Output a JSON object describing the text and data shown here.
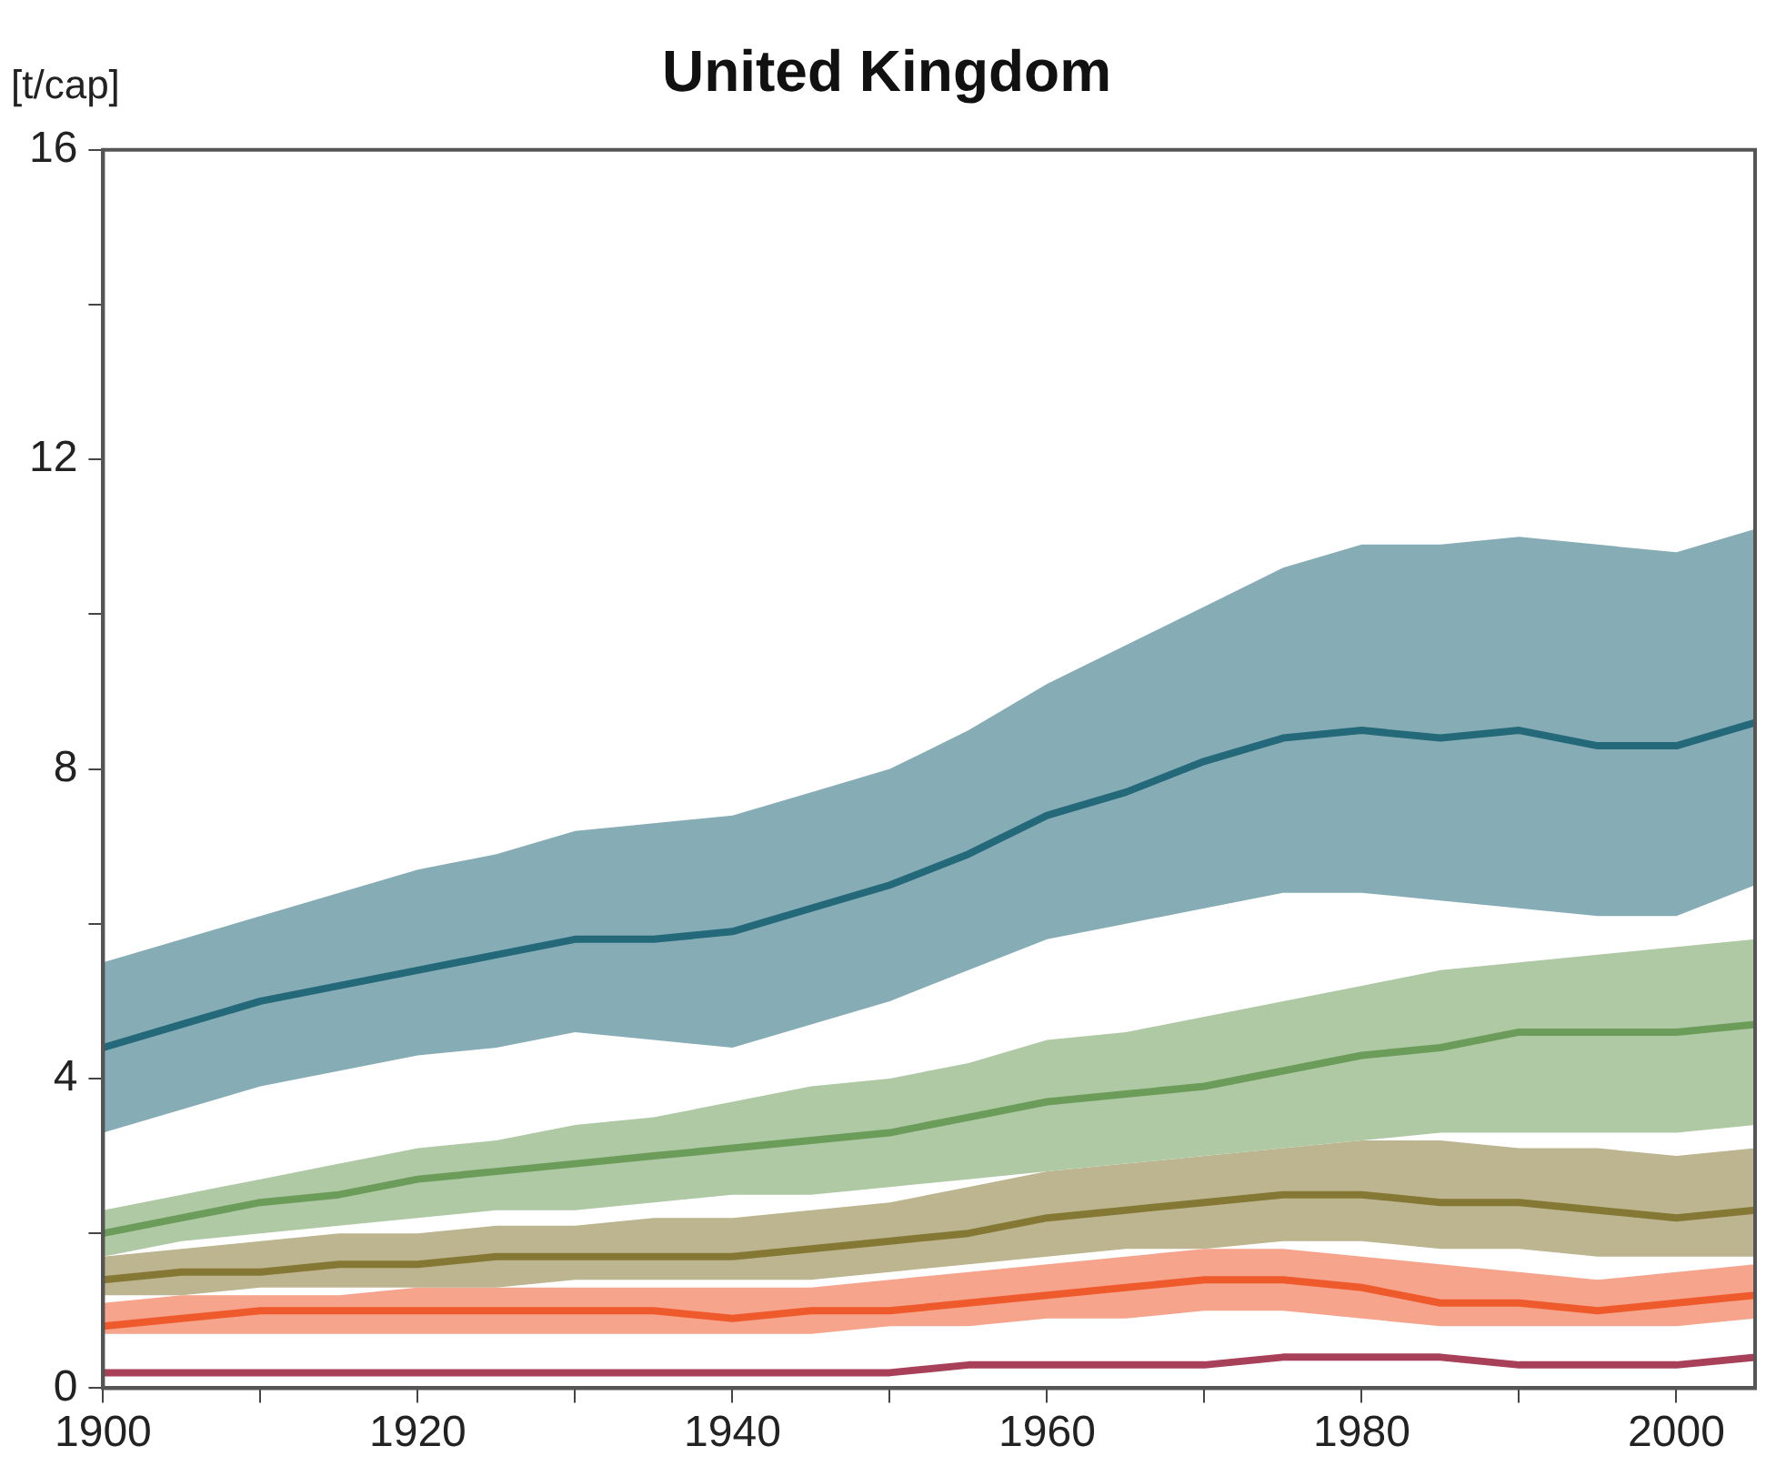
{
  "chart_data": {
    "type": "line",
    "title": "United Kingdom",
    "ylabel": "[t/cap]",
    "x": [
      1900,
      1905,
      1910,
      1915,
      1920,
      1925,
      1930,
      1935,
      1940,
      1945,
      1950,
      1955,
      1960,
      1965,
      1970,
      1975,
      1980,
      1985,
      1990,
      1995,
      2000,
      2005
    ],
    "series": [
      {
        "color": "#23697a",
        "values": [
          4.4,
          4.7,
          5.0,
          5.2,
          5.4,
          5.6,
          5.8,
          5.8,
          5.9,
          6.2,
          6.5,
          6.9,
          7.4,
          7.7,
          8.1,
          8.4,
          8.5,
          8.4,
          8.5,
          8.3,
          8.3,
          8.6
        ],
        "upper": [
          5.5,
          5.8,
          6.1,
          6.4,
          6.7,
          6.9,
          7.2,
          7.3,
          7.4,
          7.7,
          8.0,
          8.5,
          9.1,
          9.6,
          10.1,
          10.6,
          10.9,
          10.9,
          11.0,
          10.9,
          10.8,
          11.1
        ],
        "lower": [
          3.3,
          3.6,
          3.9,
          4.1,
          4.3,
          4.4,
          4.6,
          4.5,
          4.4,
          4.7,
          5.0,
          5.4,
          5.8,
          6.0,
          6.2,
          6.4,
          6.4,
          6.3,
          6.2,
          6.1,
          6.1,
          6.5
        ]
      },
      {
        "color": "#6b9c5a",
        "values": [
          2.0,
          2.2,
          2.4,
          2.5,
          2.7,
          2.8,
          2.9,
          3.0,
          3.1,
          3.2,
          3.3,
          3.5,
          3.7,
          3.8,
          3.9,
          4.1,
          4.3,
          4.4,
          4.6,
          4.6,
          4.6,
          4.7
        ],
        "upper": [
          2.3,
          2.5,
          2.7,
          2.9,
          3.1,
          3.2,
          3.4,
          3.5,
          3.7,
          3.9,
          4.0,
          4.2,
          4.5,
          4.6,
          4.8,
          5.0,
          5.2,
          5.4,
          5.5,
          5.6,
          5.7,
          5.8
        ],
        "lower": [
          1.7,
          1.9,
          2.0,
          2.1,
          2.2,
          2.3,
          2.3,
          2.4,
          2.5,
          2.5,
          2.6,
          2.7,
          2.8,
          2.9,
          3.0,
          3.1,
          3.2,
          3.3,
          3.3,
          3.3,
          3.3,
          3.4
        ]
      },
      {
        "color": "#857834",
        "values": [
          1.4,
          1.5,
          1.5,
          1.6,
          1.6,
          1.7,
          1.7,
          1.7,
          1.7,
          1.8,
          1.9,
          2.0,
          2.2,
          2.3,
          2.4,
          2.5,
          2.5,
          2.4,
          2.4,
          2.3,
          2.2,
          2.3
        ],
        "upper": [
          1.7,
          1.8,
          1.9,
          2.0,
          2.0,
          2.1,
          2.1,
          2.2,
          2.2,
          2.3,
          2.4,
          2.6,
          2.8,
          2.9,
          3.0,
          3.1,
          3.2,
          3.2,
          3.1,
          3.1,
          3.0,
          3.1
        ],
        "lower": [
          1.2,
          1.2,
          1.3,
          1.3,
          1.3,
          1.3,
          1.4,
          1.4,
          1.4,
          1.4,
          1.5,
          1.6,
          1.7,
          1.8,
          1.8,
          1.9,
          1.9,
          1.8,
          1.8,
          1.7,
          1.7,
          1.7
        ]
      },
      {
        "color": "#ee5a2c",
        "values": [
          0.8,
          0.9,
          1.0,
          1.0,
          1.0,
          1.0,
          1.0,
          1.0,
          0.9,
          1.0,
          1.0,
          1.1,
          1.2,
          1.3,
          1.4,
          1.4,
          1.3,
          1.1,
          1.1,
          1.0,
          1.1,
          1.2
        ],
        "upper": [
          1.1,
          1.2,
          1.2,
          1.2,
          1.3,
          1.3,
          1.3,
          1.3,
          1.3,
          1.3,
          1.4,
          1.5,
          1.6,
          1.7,
          1.8,
          1.8,
          1.7,
          1.6,
          1.5,
          1.4,
          1.5,
          1.6
        ],
        "lower": [
          0.7,
          0.7,
          0.7,
          0.7,
          0.7,
          0.7,
          0.7,
          0.7,
          0.7,
          0.7,
          0.8,
          0.8,
          0.9,
          0.9,
          1.0,
          1.0,
          0.9,
          0.8,
          0.8,
          0.8,
          0.8,
          0.9
        ]
      },
      {
        "color": "#a8405a",
        "values": [
          0.2,
          0.2,
          0.2,
          0.2,
          0.2,
          0.2,
          0.2,
          0.2,
          0.2,
          0.2,
          0.2,
          0.3,
          0.3,
          0.3,
          0.3,
          0.4,
          0.4,
          0.4,
          0.3,
          0.3,
          0.3,
          0.4
        ]
      }
    ],
    "xlim": [
      1900,
      2005
    ],
    "xticks": [
      1900,
      {
        "value": 1910,
        "label": null
      },
      1920,
      {
        "value": 1930,
        "label": null
      },
      1940,
      {
        "value": 1950,
        "label": null
      },
      1960,
      {
        "value": 1970,
        "label": null
      },
      1980,
      {
        "value": 1990,
        "label": null
      },
      2000
    ],
    "ylim": [
      0,
      16
    ],
    "yticks": [
      0,
      {
        "value": 2,
        "label": null
      },
      4,
      {
        "value": 6,
        "label": null
      },
      8,
      {
        "value": 10,
        "label": null
      },
      12,
      {
        "value": 14,
        "label": null
      },
      16
    ],
    "grid": false,
    "legend": false
  }
}
